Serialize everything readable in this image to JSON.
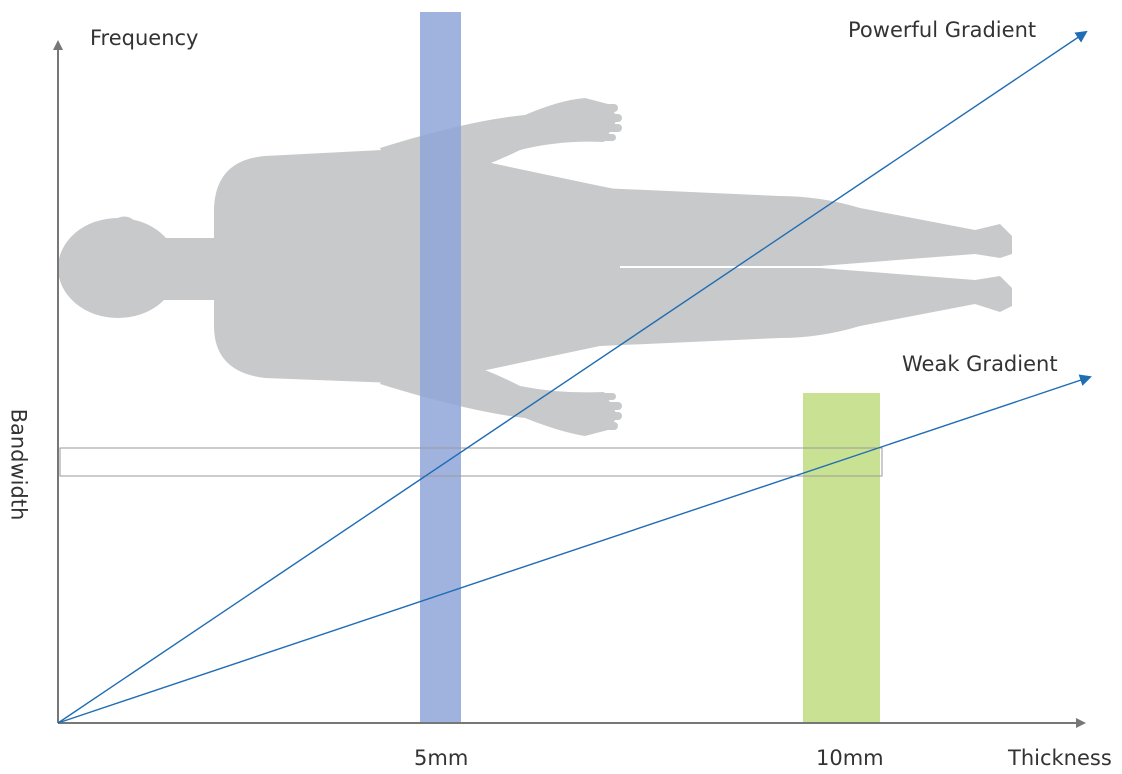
{
  "axes": {
    "y_label": "Frequency",
    "x_label": "Thickness",
    "side_label": "Bandwidth"
  },
  "gradients": {
    "powerful": {
      "label": "Powerful Gradient"
    },
    "weak": {
      "label": "Weak Gradient"
    }
  },
  "slices": {
    "thin": {
      "label": "5mm"
    },
    "thick": {
      "label": "10mm"
    }
  },
  "colors": {
    "axis": "#777777",
    "gradient_line": "#1f6db5",
    "thin_slice": "#8fa6d9",
    "thick_slice": "#c3de86",
    "body": "#c8c9ca",
    "band_outline": "#9a9a9a"
  }
}
